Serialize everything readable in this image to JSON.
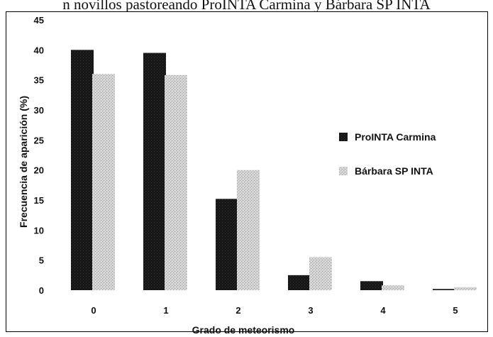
{
  "caption": "n novillos pastoreando ProINTA Carmina y Bárbara SP INTA",
  "chart_data": {
    "type": "bar",
    "title": "",
    "xlabel": "Grado de meteorismo",
    "ylabel": "Frecuencia de aparición (%)",
    "ylim": [
      0,
      45
    ],
    "yticks": [
      0,
      5,
      10,
      15,
      20,
      25,
      30,
      35,
      40,
      45
    ],
    "categories": [
      "0",
      "1",
      "2",
      "3",
      "4",
      "5"
    ],
    "series": [
      {
        "name": "ProINTA Carmina",
        "values": [
          40,
          39.5,
          15.2,
          2.5,
          1.5,
          0.2
        ],
        "color": "#1a1a1a"
      },
      {
        "name": "Bárbara SP INTA",
        "values": [
          36,
          35.8,
          20,
          5.5,
          0.8,
          0.5
        ],
        "color": "#c8c8c8"
      }
    ],
    "legend_position": "right",
    "grid": false
  }
}
